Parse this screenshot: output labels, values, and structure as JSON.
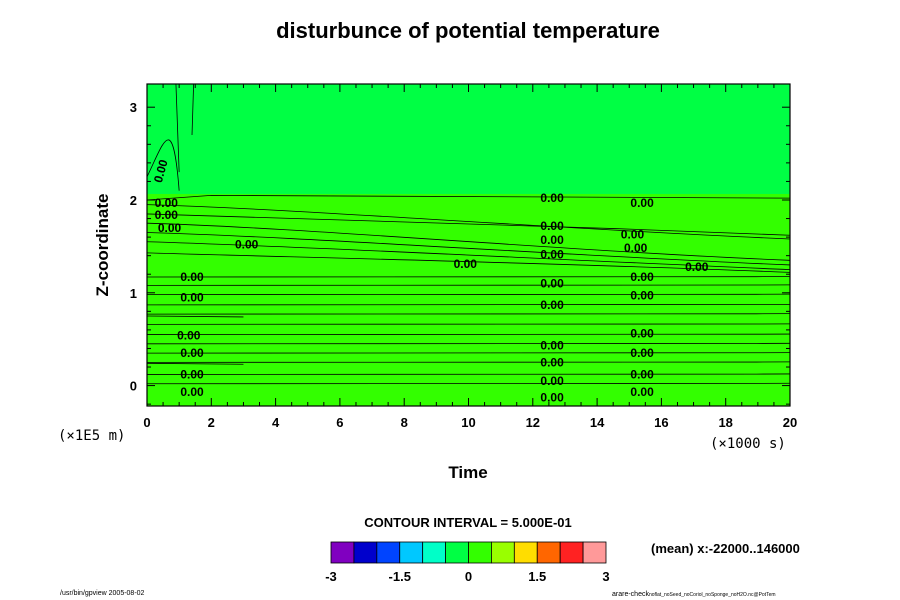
{
  "chart_data": {
    "type": "heatmap",
    "title": "disturbunce of potential temperature",
    "xlabel": "Time",
    "ylabel": "Z-coordinate",
    "x_unit": "(×1000 s)",
    "y_unit": "(×1E5 m)",
    "xlim": [
      0,
      20
    ],
    "ylim": [
      -0.22,
      3.25
    ],
    "x_ticks": [
      0,
      2,
      4,
      6,
      8,
      10,
      12,
      14,
      16,
      18,
      20
    ],
    "y_ticks": [
      0,
      1,
      2,
      3
    ],
    "field_color_upper": "#00ff44",
    "field_color_lower": "#33ff00",
    "contour_interval": "CONTOUR INTERVAL = 5.000E-01",
    "contour_label_text": "0.00",
    "colorbar": {
      "colors": [
        "#8000c0",
        "#0000cc",
        "#0044ff",
        "#00c8ff",
        "#00ffc8",
        "#00ff44",
        "#33ff00",
        "#99ff00",
        "#ffdd00",
        "#ff6600",
        "#ff2222",
        "#ff9999"
      ],
      "tick_labels": [
        "-3",
        "-1.5",
        "0",
        "1.5",
        "3"
      ],
      "tick_values": [
        -3,
        -1.5,
        0,
        1.5,
        3
      ],
      "range": [
        -3,
        3
      ]
    },
    "contour_labels": [
      {
        "x": 12.6,
        "y": 2.02
      },
      {
        "x": 15.4,
        "y": 1.97
      },
      {
        "x": 0.6,
        "y": 1.97
      },
      {
        "x": 0.6,
        "y": 1.84
      },
      {
        "x": 0.7,
        "y": 1.7
      },
      {
        "x": 12.6,
        "y": 1.72
      },
      {
        "x": 12.6,
        "y": 1.57
      },
      {
        "x": 15.1,
        "y": 1.63
      },
      {
        "x": 15.2,
        "y": 1.48
      },
      {
        "x": 3.1,
        "y": 1.52
      },
      {
        "x": 12.6,
        "y": 1.41
      },
      {
        "x": 9.9,
        "y": 1.31
      },
      {
        "x": 17.1,
        "y": 1.28
      },
      {
        "x": 1.4,
        "y": 1.17
      },
      {
        "x": 15.4,
        "y": 1.17
      },
      {
        "x": 12.6,
        "y": 1.1
      },
      {
        "x": 1.4,
        "y": 0.95
      },
      {
        "x": 15.4,
        "y": 0.97
      },
      {
        "x": 12.6,
        "y": 0.87
      },
      {
        "x": 1.3,
        "y": 0.54
      },
      {
        "x": 15.4,
        "y": 0.56
      },
      {
        "x": 1.4,
        "y": 0.35
      },
      {
        "x": 12.6,
        "y": 0.43
      },
      {
        "x": 15.4,
        "y": 0.35
      },
      {
        "x": 12.6,
        "y": 0.25
      },
      {
        "x": 1.4,
        "y": 0.12
      },
      {
        "x": 12.6,
        "y": 0.05
      },
      {
        "x": 15.4,
        "y": 0.12
      },
      {
        "x": 1.4,
        "y": -0.07
      },
      {
        "x": 12.6,
        "y": -0.13
      },
      {
        "x": 15.4,
        "y": -0.07
      }
    ],
    "rotated_label": {
      "x": 0.55,
      "y": 2.3
    }
  },
  "footer": {
    "mean": "(mean) x:-22000..146000",
    "left": "/usr/bin/gpview 2005-08-02",
    "right": "arare-check",
    "right_small": "noflat_noSeed_noCoriol_noSponge_noH2O.nc@PotTem"
  }
}
